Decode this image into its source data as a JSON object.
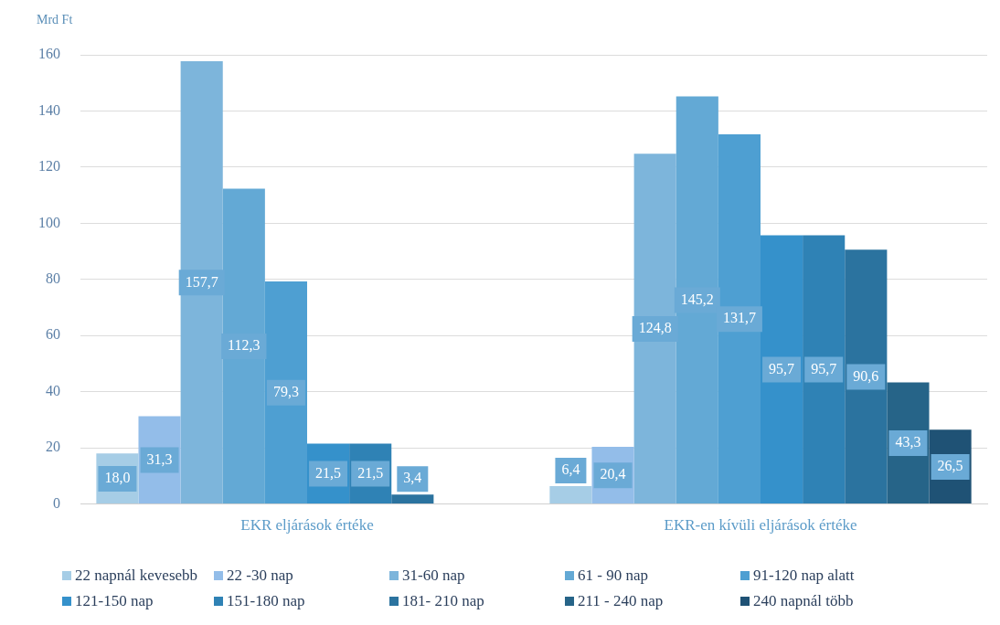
{
  "chart_data": {
    "type": "bar",
    "ylabel": "Mrd Ft",
    "categories": [
      "EKR eljárások értéke",
      "EKR-en kívüli eljárások értéke"
    ],
    "series": [
      {
        "name": "22 napnál kevesebb",
        "color": "#a6cde6",
        "values": [
          18.0,
          6.4
        ],
        "value_labels": [
          "18,0",
          "6,4"
        ]
      },
      {
        "name": "22 -30 nap",
        "color": "#93bde9",
        "values": [
          31.3,
          20.4
        ],
        "value_labels": [
          "31,3",
          "20,4"
        ]
      },
      {
        "name": "31-60 nap",
        "color": "#7db5db",
        "values": [
          157.7,
          124.8
        ],
        "value_labels": [
          "157,7",
          "124,8"
        ]
      },
      {
        "name": "61 - 90 nap",
        "color": "#63a9d5",
        "values": [
          112.3,
          145.2
        ],
        "value_labels": [
          "112,3",
          "145,2"
        ]
      },
      {
        "name": "91-120 nap alatt",
        "color": "#4e9fd2",
        "values": [
          79.3,
          131.7
        ],
        "value_labels": [
          "79,3",
          "131,7"
        ]
      },
      {
        "name": "121-150 nap",
        "color": "#3591cb",
        "values": [
          21.5,
          95.7
        ],
        "value_labels": [
          "21,5",
          "95,7"
        ]
      },
      {
        "name": "151-180 nap",
        "color": "#2f82b5",
        "values": [
          21.5,
          95.7
        ],
        "value_labels": [
          "21,5",
          "95,7"
        ]
      },
      {
        "name": "181- 210 nap",
        "color": "#2b739f",
        "values": [
          3.4,
          90.6
        ],
        "value_labels": [
          "3,4",
          "90,6"
        ]
      },
      {
        "name": "211 - 240 nap",
        "color": "#266488",
        "values": [
          null,
          43.3
        ],
        "value_labels": [
          null,
          "43,3"
        ]
      },
      {
        "name": "240 napnál több",
        "color": "#1f5275",
        "values": [
          null,
          26.5
        ],
        "value_labels": [
          null,
          "26,5"
        ]
      }
    ],
    "ylim": [
      0,
      160
    ],
    "yticks": [
      0,
      20,
      40,
      60,
      80,
      100,
      120,
      140,
      160
    ],
    "grid": "y",
    "legend": "bottom"
  }
}
